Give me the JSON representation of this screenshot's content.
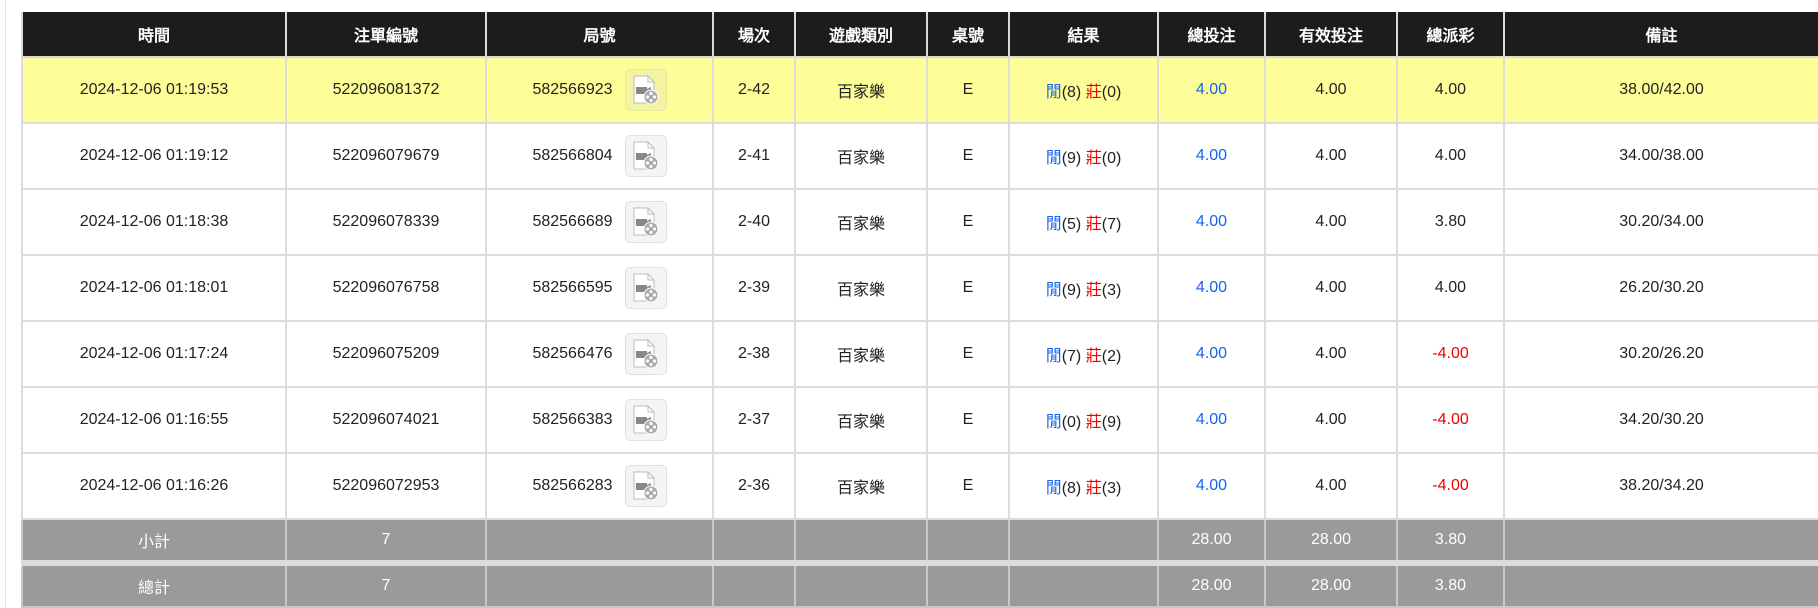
{
  "headers": [
    "時間",
    "注單編號",
    "局號",
    "場次",
    "遊戲類別",
    "桌號",
    "結果",
    "總投注",
    "有效投注",
    "總派彩",
    "備註"
  ],
  "rows": [
    {
      "time": "2024-12-06 01:19:53",
      "bet_id": "522096081372",
      "round": "582566923",
      "shoe": "2-42",
      "game": "百家樂",
      "table": "E",
      "player_label": "閒",
      "player": "(8)",
      "banker_label": "莊",
      "banker": "(0)",
      "total_bet": "4.00",
      "valid_bet": "4.00",
      "payout": "4.00",
      "payout_negative": false,
      "note": "38.00/42.00",
      "highlight": true
    },
    {
      "time": "2024-12-06 01:19:12",
      "bet_id": "522096079679",
      "round": "582566804",
      "shoe": "2-41",
      "game": "百家樂",
      "table": "E",
      "player_label": "閒",
      "player": "(9)",
      "banker_label": "莊",
      "banker": "(0)",
      "total_bet": "4.00",
      "valid_bet": "4.00",
      "payout": "4.00",
      "payout_negative": false,
      "note": "34.00/38.00"
    },
    {
      "time": "2024-12-06 01:18:38",
      "bet_id": "522096078339",
      "round": "582566689",
      "shoe": "2-40",
      "game": "百家樂",
      "table": "E",
      "player_label": "閒",
      "player": "(5)",
      "banker_label": "莊",
      "banker": "(7)",
      "total_bet": "4.00",
      "valid_bet": "4.00",
      "payout": "3.80",
      "payout_negative": false,
      "note": "30.20/34.00"
    },
    {
      "time": "2024-12-06 01:18:01",
      "bet_id": "522096076758",
      "round": "582566595",
      "shoe": "2-39",
      "game": "百家樂",
      "table": "E",
      "player_label": "閒",
      "player": "(9)",
      "banker_label": "莊",
      "banker": "(3)",
      "total_bet": "4.00",
      "valid_bet": "4.00",
      "payout": "4.00",
      "payout_negative": false,
      "note": "26.20/30.20"
    },
    {
      "time": "2024-12-06 01:17:24",
      "bet_id": "522096075209",
      "round": "582566476",
      "shoe": "2-38",
      "game": "百家樂",
      "table": "E",
      "player_label": "閒",
      "player": "(7)",
      "banker_label": "莊",
      "banker": "(2)",
      "total_bet": "4.00",
      "valid_bet": "4.00",
      "payout": "-4.00",
      "payout_negative": true,
      "note": "30.20/26.20"
    },
    {
      "time": "2024-12-06 01:16:55",
      "bet_id": "522096074021",
      "round": "582566383",
      "shoe": "2-37",
      "game": "百家樂",
      "table": "E",
      "player_label": "閒",
      "player": "(0)",
      "banker_label": "莊",
      "banker": "(9)",
      "total_bet": "4.00",
      "valid_bet": "4.00",
      "payout": "-4.00",
      "payout_negative": true,
      "note": "34.20/30.20"
    },
    {
      "time": "2024-12-06 01:16:26",
      "bet_id": "522096072953",
      "round": "582566283",
      "shoe": "2-36",
      "game": "百家樂",
      "table": "E",
      "player_label": "閒",
      "player": "(8)",
      "banker_label": "莊",
      "banker": "(3)",
      "total_bet": "4.00",
      "valid_bet": "4.00",
      "payout": "-4.00",
      "payout_negative": true,
      "note": "38.20/34.20"
    }
  ],
  "subtotal": {
    "label": "小計",
    "count": "7",
    "total_bet": "28.00",
    "valid_bet": "28.00",
    "payout": "3.80"
  },
  "total": {
    "label": "總計",
    "count": "7",
    "total_bet": "28.00",
    "valid_bet": "28.00",
    "payout": "3.80"
  },
  "icons": {
    "replay": "video-replay-icon"
  },
  "colors": {
    "header_bg": "#1c1c1c",
    "highlight_row": "#fefe99",
    "footer_bg": "#9a9a9a",
    "player": "#1464f0",
    "banker": "#f00000",
    "negative": "#f00000"
  }
}
